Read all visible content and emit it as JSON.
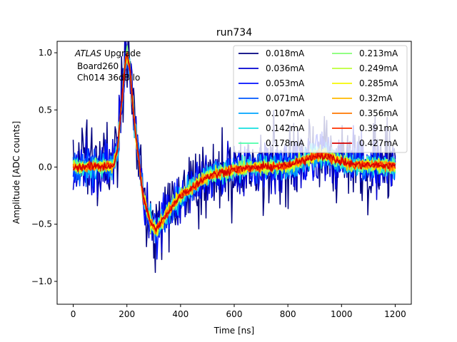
{
  "chart_data": {
    "type": "line",
    "title": "run734",
    "xlabel": "Time [ns]",
    "ylabel": "Amplitude [ADC counts]",
    "xlim": [
      -60,
      1260
    ],
    "ylim": [
      -1.2,
      1.1
    ],
    "xticks": [
      0,
      200,
      400,
      600,
      800,
      1000,
      1200
    ],
    "yticks": [
      -1.0,
      -0.5,
      0.0,
      0.5,
      1.0
    ],
    "ytick_labels": [
      "−1.0",
      "−0.5",
      "0.0",
      "0.5",
      "1.0"
    ],
    "grid": false,
    "legend_position": "top-right",
    "legend_columns": 2,
    "annotation": {
      "lines": [
        "ATLAS Upgrade",
        "Board260",
        "Ch014 36dB lo"
      ],
      "italic_word": "ATLAS"
    },
    "pulse_shape": {
      "time_ns": [
        0,
        150,
        165,
        180,
        195,
        200,
        210,
        230,
        260,
        290,
        310,
        350,
        400,
        500,
        600,
        700,
        800,
        850,
        900,
        940,
        980,
        1050,
        1200
      ],
      "amplitude": [
        0.0,
        0.01,
        0.15,
        0.55,
        0.93,
        1.0,
        0.88,
        0.35,
        -0.25,
        -0.5,
        -0.55,
        -0.4,
        -0.25,
        -0.08,
        -0.02,
        0.0,
        0.01,
        0.05,
        0.1,
        0.1,
        0.06,
        0.02,
        0.01
      ]
    },
    "sampling_step_ns": 3,
    "series": [
      {
        "name": "0.018mA",
        "color": "#00007f",
        "noise": 0.27
      },
      {
        "name": "0.036mA",
        "color": "#0000d0",
        "noise": 0.17
      },
      {
        "name": "0.053mA",
        "color": "#0010ff",
        "noise": 0.13
      },
      {
        "name": "0.071mA",
        "color": "#0058ff",
        "noise": 0.1
      },
      {
        "name": "0.107mA",
        "color": "#00a4ff",
        "noise": 0.08
      },
      {
        "name": "0.142mA",
        "color": "#16e0e0",
        "noise": 0.06
      },
      {
        "name": "0.178mA",
        "color": "#4dffaa",
        "noise": 0.055
      },
      {
        "name": "0.213mA",
        "color": "#83ff73",
        "noise": 0.05
      },
      {
        "name": "0.249mA",
        "color": "#bdff3a",
        "noise": 0.045
      },
      {
        "name": "0.285mA",
        "color": "#f4f802",
        "noise": 0.04
      },
      {
        "name": "0.32mA",
        "color": "#ffb900",
        "noise": 0.035
      },
      {
        "name": "0.356mA",
        "color": "#ff7700",
        "noise": 0.03
      },
      {
        "name": "0.391mA",
        "color": "#ff3000",
        "noise": 0.028
      },
      {
        "name": "0.427mA",
        "color": "#d40000",
        "noise": 0.025
      }
    ]
  }
}
